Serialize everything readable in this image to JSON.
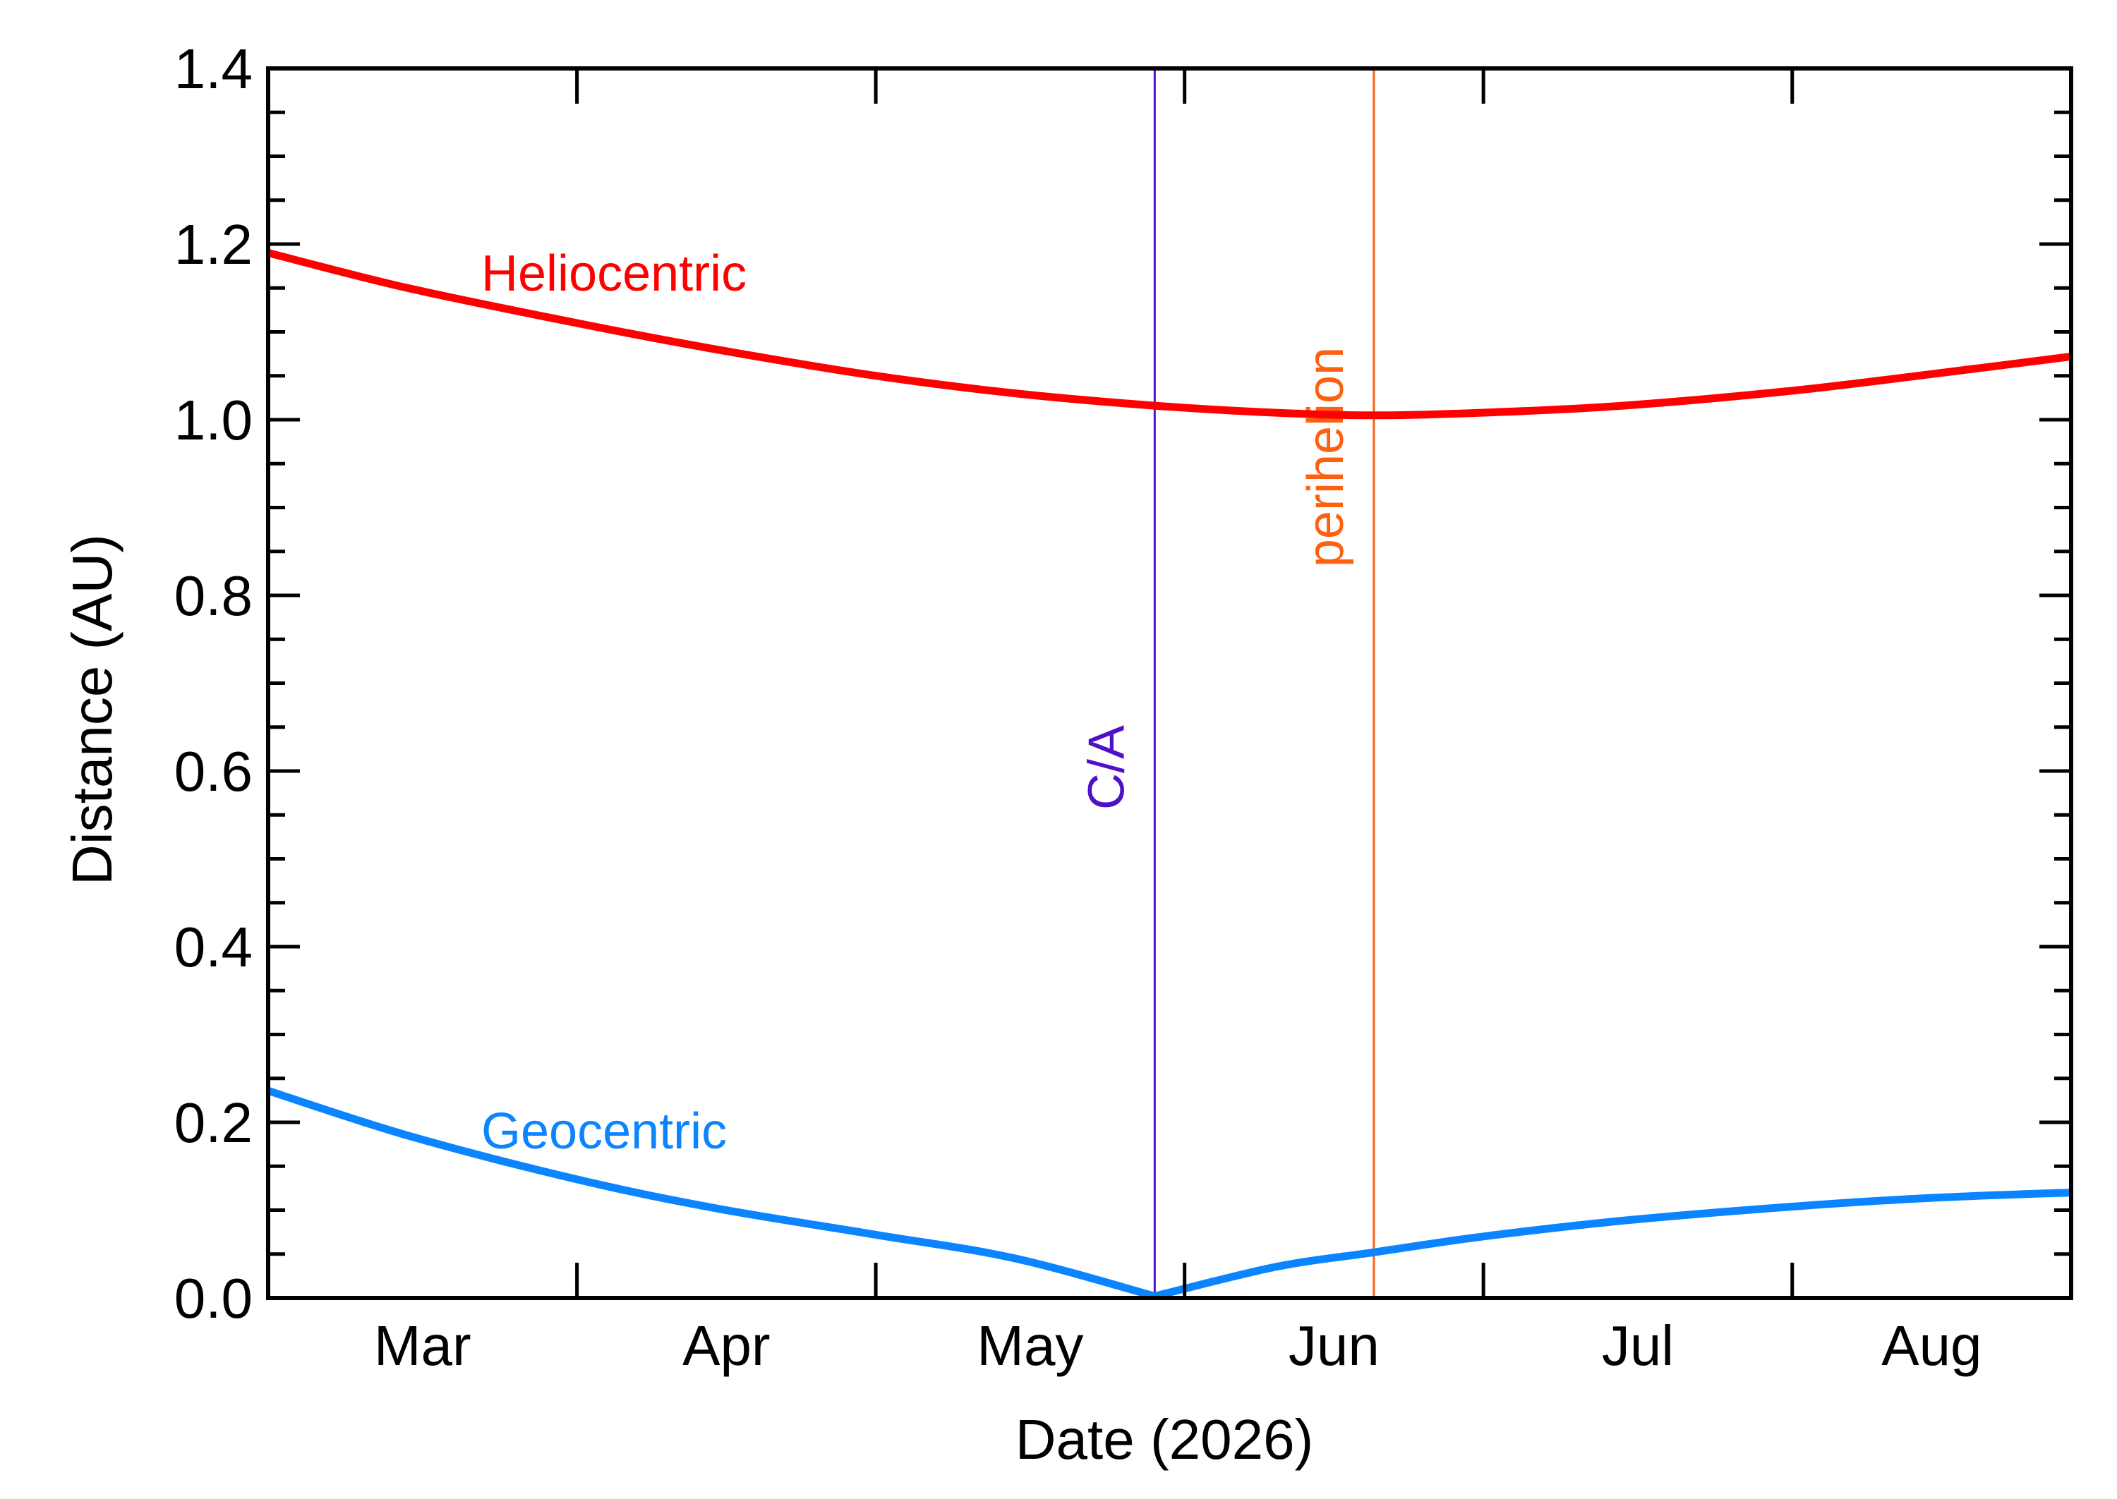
{
  "chart_data": {
    "type": "line",
    "title": "",
    "xlabel": "Date (2026)",
    "ylabel": "Distance (AU)",
    "x_type": "date",
    "xlim": [
      "2026-03-01",
      "2026-08-29"
    ],
    "ylim": [
      0.0,
      1.4
    ],
    "x_ticks": [
      {
        "date": "2026-03-01",
        "label": "Mar"
      },
      {
        "date": "2026-04-01",
        "label": "Apr"
      },
      {
        "date": "2026-05-01",
        "label": "May"
      },
      {
        "date": "2026-06-01",
        "label": "Jun"
      },
      {
        "date": "2026-07-01",
        "label": "Jul"
      },
      {
        "date": "2026-08-01",
        "label": "Aug"
      }
    ],
    "y_ticks": [
      {
        "value": 0.0,
        "label": "0.0"
      },
      {
        "value": 0.2,
        "label": "0.2"
      },
      {
        "value": 0.4,
        "label": "0.4"
      },
      {
        "value": 0.6,
        "label": "0.6"
      },
      {
        "value": 0.8,
        "label": "0.8"
      },
      {
        "value": 1.0,
        "label": "1.0"
      },
      {
        "value": 1.2,
        "label": "1.2"
      },
      {
        "value": 1.4,
        "label": "1.4"
      }
    ],
    "grid": false,
    "series": [
      {
        "name": "Heliocentric",
        "color": "#ff0000",
        "points": [
          {
            "x": "2026-03-01",
            "y": 1.19
          },
          {
            "x": "2026-03-15",
            "y": 1.15
          },
          {
            "x": "2026-04-01",
            "y": 1.11
          },
          {
            "x": "2026-04-15",
            "y": 1.08
          },
          {
            "x": "2026-05-01",
            "y": 1.05
          },
          {
            "x": "2026-05-15",
            "y": 1.03
          },
          {
            "x": "2026-05-29",
            "y": 1.016
          },
          {
            "x": "2026-06-10",
            "y": 1.008
          },
          {
            "x": "2026-06-20",
            "y": 1.005
          },
          {
            "x": "2026-07-01",
            "y": 1.008
          },
          {
            "x": "2026-07-15",
            "y": 1.016
          },
          {
            "x": "2026-08-01",
            "y": 1.033
          },
          {
            "x": "2026-08-15",
            "y": 1.052
          },
          {
            "x": "2026-08-29",
            "y": 1.072
          }
        ]
      },
      {
        "name": "Geocentric",
        "color": "#0a84ff",
        "points": [
          {
            "x": "2026-03-01",
            "y": 0.236
          },
          {
            "x": "2026-03-15",
            "y": 0.185
          },
          {
            "x": "2026-04-01",
            "y": 0.135
          },
          {
            "x": "2026-04-15",
            "y": 0.102
          },
          {
            "x": "2026-05-01",
            "y": 0.072
          },
          {
            "x": "2026-05-15",
            "y": 0.045
          },
          {
            "x": "2026-05-29",
            "y": 0.002
          },
          {
            "x": "2026-06-10",
            "y": 0.035
          },
          {
            "x": "2026-06-20",
            "y": 0.052
          },
          {
            "x": "2026-07-01",
            "y": 0.07
          },
          {
            "x": "2026-07-15",
            "y": 0.088
          },
          {
            "x": "2026-08-01",
            "y": 0.104
          },
          {
            "x": "2026-08-15",
            "y": 0.114
          },
          {
            "x": "2026-08-29",
            "y": 0.12
          }
        ]
      }
    ],
    "markers": [
      {
        "label": "C/A",
        "date": "2026-05-29",
        "color": "#5010c8"
      },
      {
        "label": "perihelion",
        "date": "2026-06-20",
        "color": "#ff6010"
      }
    ],
    "annotations": [
      {
        "text": "Heliocentric",
        "series": "Heliocentric"
      },
      {
        "text": "Geocentric",
        "series": "Geocentric"
      }
    ]
  }
}
